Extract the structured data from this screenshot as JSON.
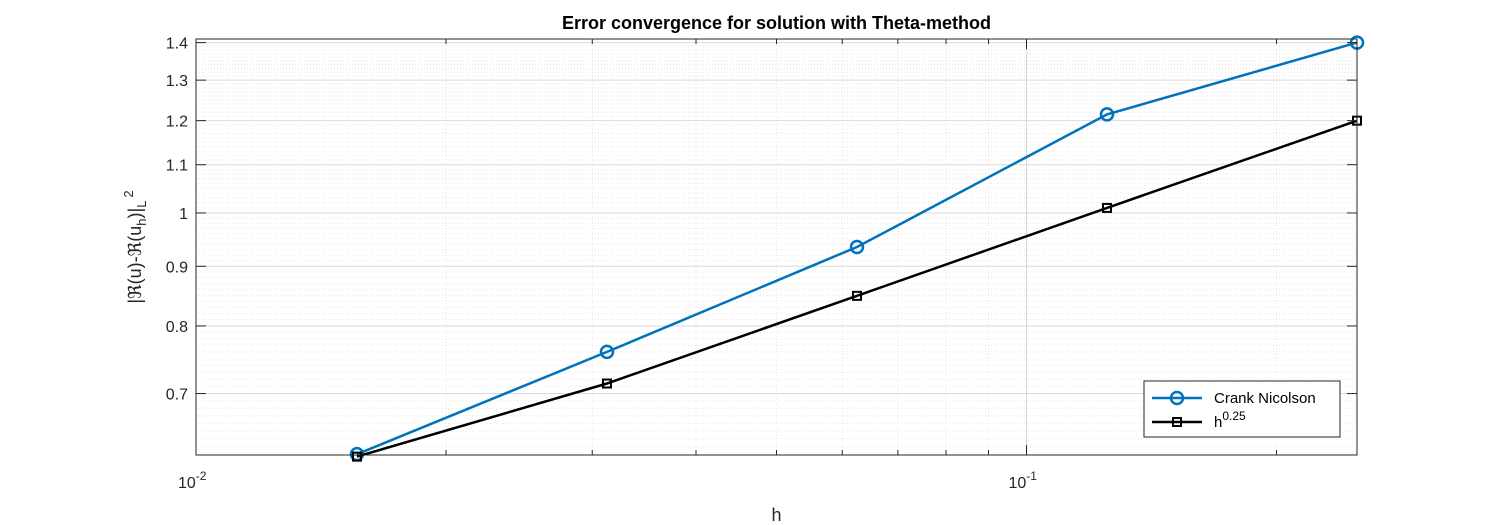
{
  "chart_data": {
    "type": "line",
    "title": "Error convergence for solution with Theta-method",
    "xlabel": "h",
    "ylabel_parts": {
      "main": "|ℜ(u)-ℜ(u",
      "sub_h": "h",
      "close": ")|",
      "sub_L": "L",
      "sup_2": "2"
    },
    "xscale": "log",
    "yscale": "log",
    "xlim": [
      0.01,
      0.25
    ],
    "ylim": [
      0.62,
      1.41
    ],
    "x_ticks": [
      {
        "value": 0.01,
        "base": "10",
        "exp": "-2"
      },
      {
        "value": 0.1,
        "base": "10",
        "exp": "-1"
      }
    ],
    "y_ticks": [
      {
        "value": 0.7,
        "label": "0.7"
      },
      {
        "value": 0.8,
        "label": "0.8"
      },
      {
        "value": 0.9,
        "label": "0.9"
      },
      {
        "value": 1.0,
        "label": "1"
      },
      {
        "value": 1.1,
        "label": "1.1"
      },
      {
        "value": 1.2,
        "label": "1.2"
      },
      {
        "value": 1.3,
        "label": "1.3"
      },
      {
        "value": 1.4,
        "label": "1.4"
      }
    ],
    "grid": true,
    "minor_grid": true,
    "legend_position": "bottom-right",
    "series": [
      {
        "name": "Crank Nicolson",
        "name_base": "Crank Nicolson",
        "name_sup": "",
        "color": "#0072BD",
        "marker": "circle",
        "x": [
          0.015625,
          0.03125,
          0.0625,
          0.125,
          0.25
        ],
        "y": [
          0.621,
          0.76,
          0.935,
          1.215,
          1.4
        ]
      },
      {
        "name": "h^0.25",
        "name_base": "h",
        "name_sup": "0.25",
        "color": "#000000",
        "marker": "square",
        "x": [
          0.015625,
          0.03125,
          0.0625,
          0.125,
          0.25
        ],
        "y": [
          0.618,
          0.714,
          0.849,
          1.01,
          1.2
        ]
      }
    ]
  }
}
